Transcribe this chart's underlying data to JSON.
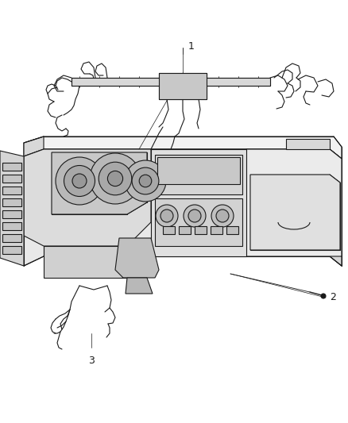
{
  "background_color": "#ffffff",
  "figure_width": 4.38,
  "figure_height": 5.33,
  "dpi": 100,
  "label_1": "1",
  "label_2": "2",
  "label_3": "3",
  "line_color": "#1a1a1a",
  "line_width": 0.8,
  "annotation_fontsize": 9,
  "dash_fill": "#e8e8e8",
  "dash_fill2": "#d8d8d8",
  "dash_fill3": "#f2f2f2",
  "dash_stroke": "#1a1a1a"
}
